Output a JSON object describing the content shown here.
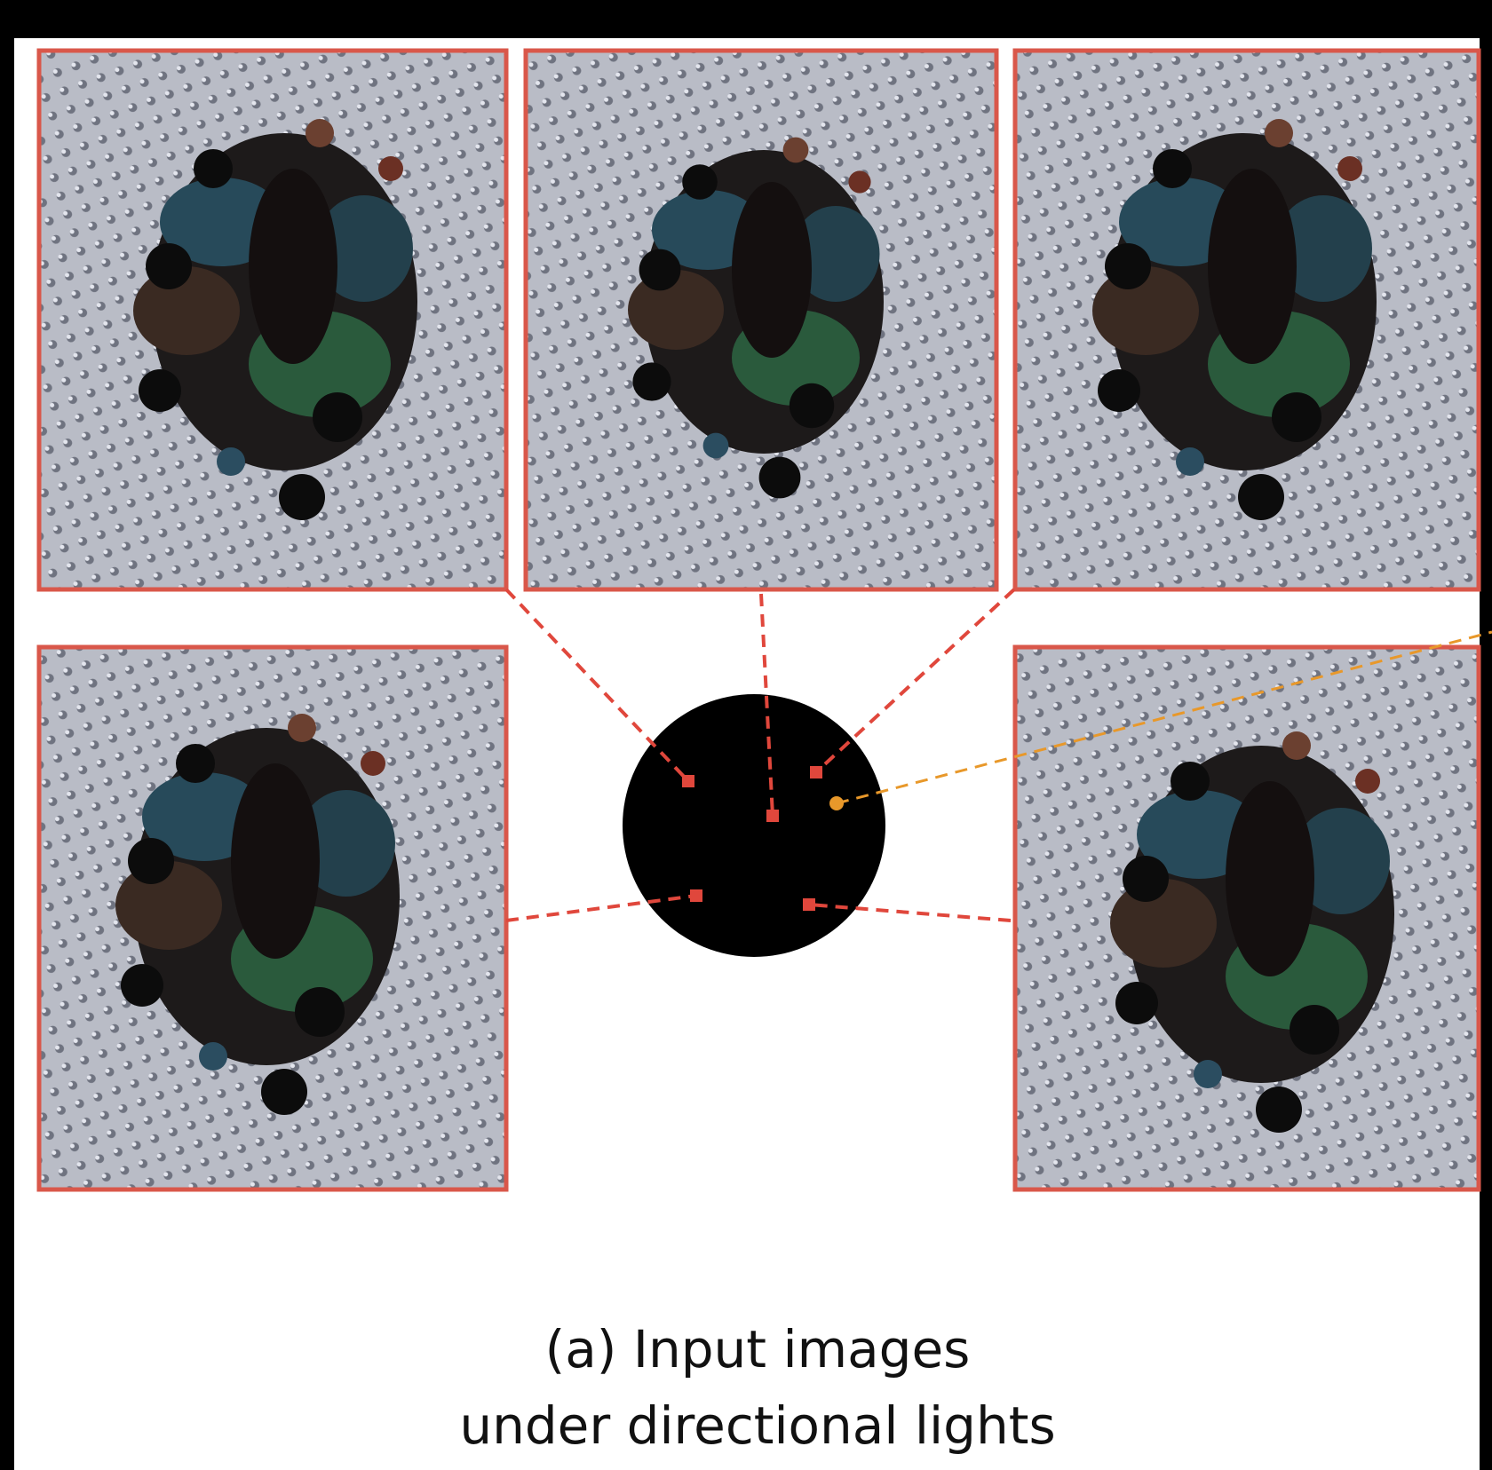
{
  "caption": {
    "line1": "(a) Input images",
    "line2": "under directional lights"
  }
}
